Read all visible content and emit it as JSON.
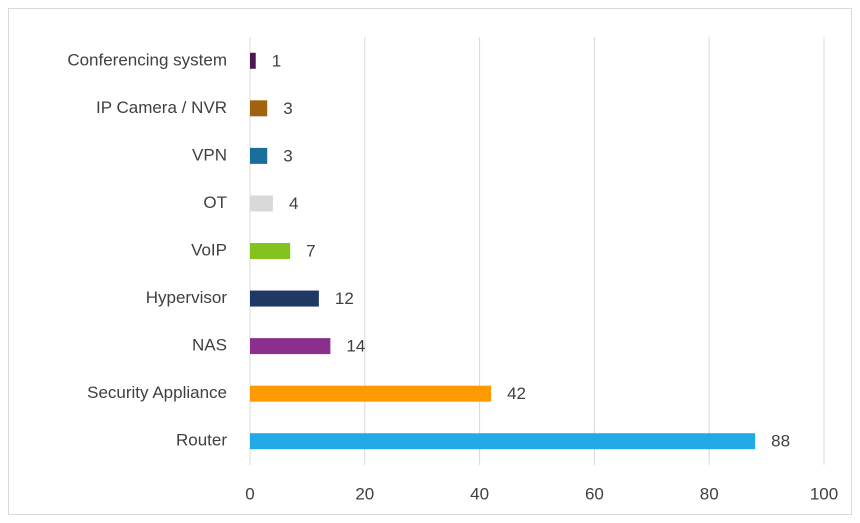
{
  "chart_data": {
    "type": "bar",
    "orientation": "horizontal",
    "categories": [
      "Conferencing system",
      "IP Camera / NVR",
      "VPN",
      "OT",
      "VoIP",
      "Hypervisor",
      "NAS",
      "Security Appliance",
      "Router"
    ],
    "values": [
      1,
      3,
      3,
      4,
      7,
      12,
      14,
      42,
      88
    ],
    "colors": [
      "#4b1a4f",
      "#a0620c",
      "#1a6e9a",
      "#d9d9d9",
      "#84c31e",
      "#1f3864",
      "#8b2f8f",
      "#ff9900",
      "#22aae8"
    ],
    "xlim": [
      0,
      100
    ],
    "xticks": [
      0,
      20,
      40,
      60,
      80,
      100
    ],
    "grid": true,
    "data_labels": true
  }
}
